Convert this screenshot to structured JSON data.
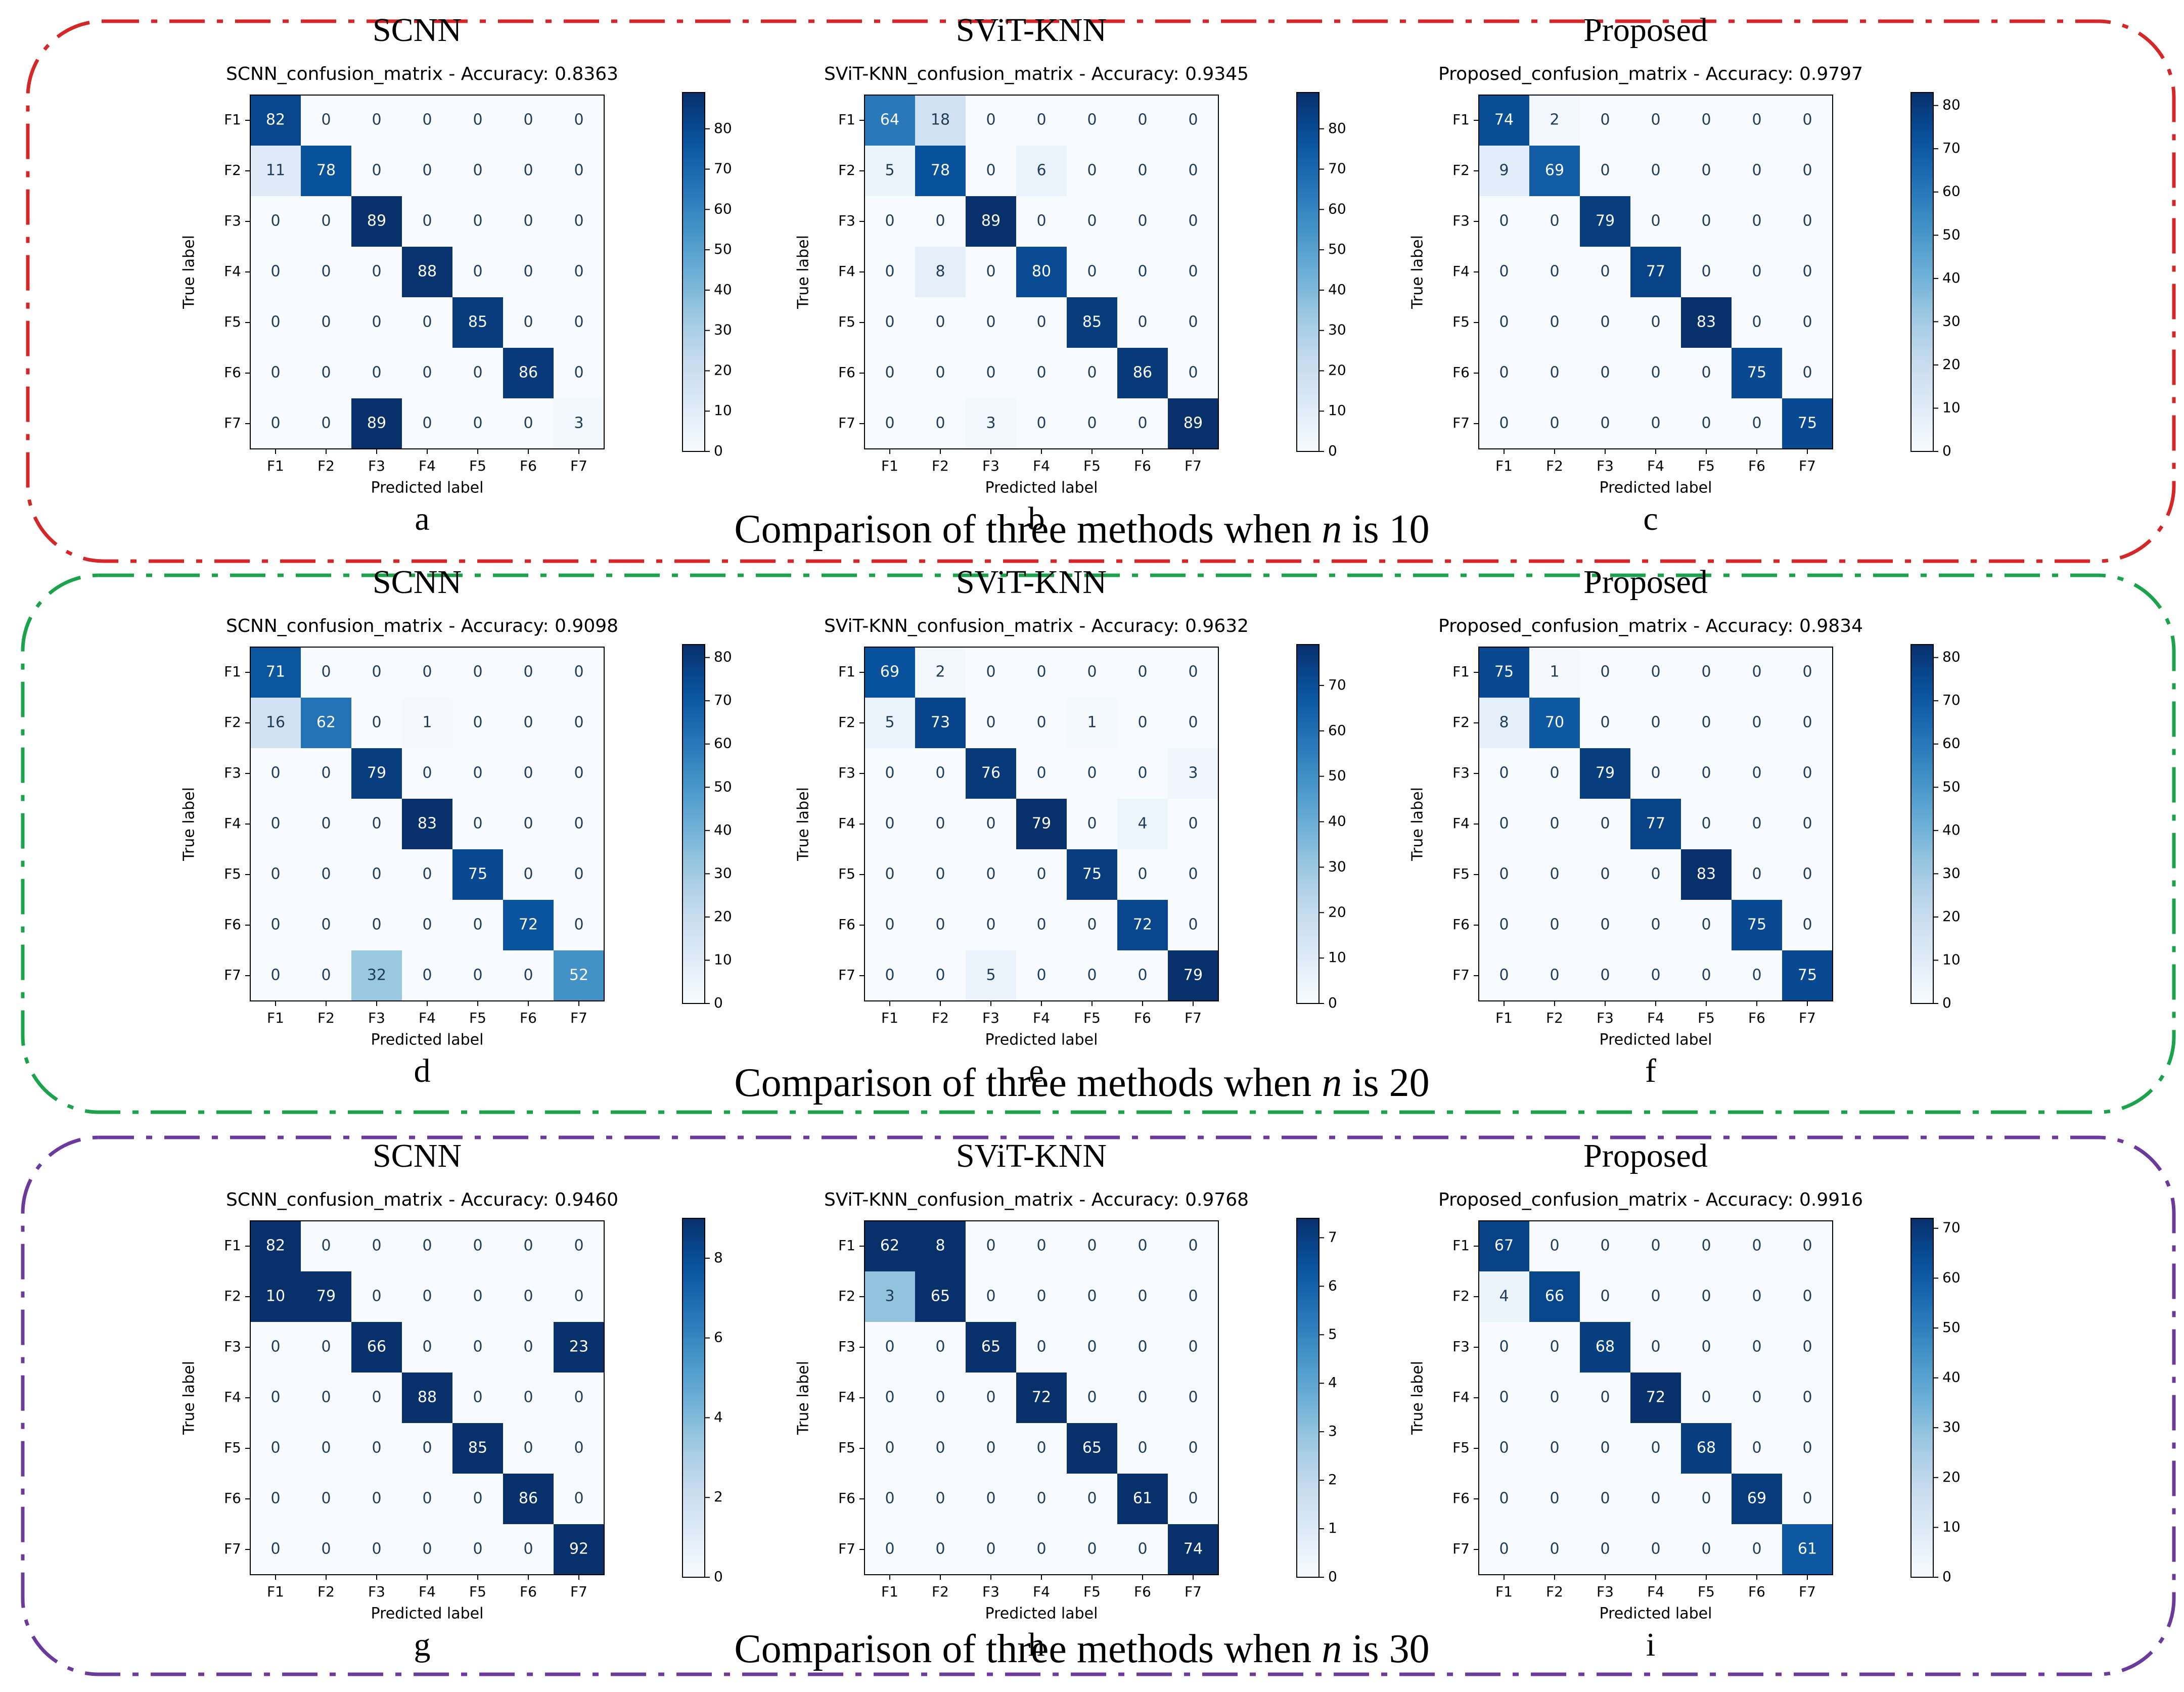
{
  "classes": [
    "F1",
    "F2",
    "F3",
    "F4",
    "F5",
    "F6",
    "F7"
  ],
  "axis_labels": {
    "x": "Predicted label",
    "y": "True label"
  },
  "groups": [
    {
      "caption_pre": "Comparison of three methods when ",
      "caption_var": "n",
      "caption_post": " is 10",
      "color": "#d62728"
    },
    {
      "caption_pre": "Comparison of three methods when ",
      "caption_var": "n",
      "caption_post": " is 20",
      "color": "#1aa34a"
    },
    {
      "caption_pre": "Comparison of three methods when ",
      "caption_var": "n",
      "caption_post": " is 30",
      "color": "#6b3a9a"
    }
  ],
  "chart_data": [
    {
      "type": "heatmap",
      "method": "SCNN",
      "panel": "a",
      "title": "SCNN_confusion_matrix - Accuracy: 0.8363",
      "xlabel": "Predicted label",
      "ylabel": "True label",
      "categories": [
        "F1",
        "F2",
        "F3",
        "F4",
        "F5",
        "F6",
        "F7"
      ],
      "vmax": 89,
      "colorbar_ticks": [
        "0",
        "10",
        "20",
        "30",
        "40",
        "50",
        "60",
        "70",
        "80"
      ],
      "colorbar_tick_values": [
        0,
        10,
        20,
        30,
        40,
        50,
        60,
        70,
        80
      ],
      "matrix": [
        [
          82,
          0,
          0,
          0,
          0,
          0,
          0
        ],
        [
          11,
          78,
          0,
          0,
          0,
          0,
          0
        ],
        [
          0,
          0,
          89,
          0,
          0,
          0,
          0
        ],
        [
          0,
          0,
          0,
          88,
          0,
          0,
          0
        ],
        [
          0,
          0,
          0,
          0,
          85,
          0,
          0
        ],
        [
          0,
          0,
          0,
          0,
          0,
          86,
          0
        ],
        [
          0,
          0,
          89,
          0,
          0,
          0,
          3
        ]
      ]
    },
    {
      "type": "heatmap",
      "method": "SViT-KNN",
      "panel": "b",
      "title": "SViT-KNN_confusion_matrix - Accuracy: 0.9345",
      "xlabel": "Predicted label",
      "ylabel": "True label",
      "categories": [
        "F1",
        "F2",
        "F3",
        "F4",
        "F5",
        "F6",
        "F7"
      ],
      "vmax": 89,
      "colorbar_ticks": [
        "0",
        "10",
        "20",
        "30",
        "40",
        "50",
        "60",
        "70",
        "80"
      ],
      "colorbar_tick_values": [
        0,
        10,
        20,
        30,
        40,
        50,
        60,
        70,
        80
      ],
      "matrix": [
        [
          64,
          18,
          0,
          0,
          0,
          0,
          0
        ],
        [
          5,
          78,
          0,
          6,
          0,
          0,
          0
        ],
        [
          0,
          0,
          89,
          0,
          0,
          0,
          0
        ],
        [
          0,
          8,
          0,
          80,
          0,
          0,
          0
        ],
        [
          0,
          0,
          0,
          0,
          85,
          0,
          0
        ],
        [
          0,
          0,
          0,
          0,
          0,
          86,
          0
        ],
        [
          0,
          0,
          3,
          0,
          0,
          0,
          89
        ]
      ]
    },
    {
      "type": "heatmap",
      "method": "Proposed",
      "panel": "c",
      "title": "Proposed_confusion_matrix - Accuracy: 0.9797",
      "xlabel": "Predicted label",
      "ylabel": "True label",
      "categories": [
        "F1",
        "F2",
        "F3",
        "F4",
        "F5",
        "F6",
        "F7"
      ],
      "vmax": 83,
      "colorbar_ticks": [
        "0",
        "10",
        "20",
        "30",
        "40",
        "50",
        "60",
        "70",
        "80"
      ],
      "colorbar_tick_values": [
        0,
        10,
        20,
        30,
        40,
        50,
        60,
        70,
        80
      ],
      "matrix": [
        [
          74,
          2,
          0,
          0,
          0,
          0,
          0
        ],
        [
          9,
          69,
          0,
          0,
          0,
          0,
          0
        ],
        [
          0,
          0,
          79,
          0,
          0,
          0,
          0
        ],
        [
          0,
          0,
          0,
          77,
          0,
          0,
          0
        ],
        [
          0,
          0,
          0,
          0,
          83,
          0,
          0
        ],
        [
          0,
          0,
          0,
          0,
          0,
          75,
          0
        ],
        [
          0,
          0,
          0,
          0,
          0,
          0,
          75
        ]
      ]
    },
    {
      "type": "heatmap",
      "method": "SCNN",
      "panel": "d",
      "title": "SCNN_confusion_matrix - Accuracy: 0.9098",
      "xlabel": "Predicted label",
      "ylabel": "True label",
      "categories": [
        "F1",
        "F2",
        "F3",
        "F4",
        "F5",
        "F6",
        "F7"
      ],
      "vmax": 83,
      "colorbar_ticks": [
        "0",
        "10",
        "20",
        "30",
        "40",
        "50",
        "60",
        "70",
        "80"
      ],
      "colorbar_tick_values": [
        0,
        10,
        20,
        30,
        40,
        50,
        60,
        70,
        80
      ],
      "matrix": [
        [
          71,
          0,
          0,
          0,
          0,
          0,
          0
        ],
        [
          16,
          62,
          0,
          1,
          0,
          0,
          0
        ],
        [
          0,
          0,
          79,
          0,
          0,
          0,
          0
        ],
        [
          0,
          0,
          0,
          83,
          0,
          0,
          0
        ],
        [
          0,
          0,
          0,
          0,
          75,
          0,
          0
        ],
        [
          0,
          0,
          0,
          0,
          0,
          72,
          0
        ],
        [
          0,
          0,
          32,
          0,
          0,
          0,
          52
        ]
      ]
    },
    {
      "type": "heatmap",
      "method": "SViT-KNN",
      "panel": "e",
      "title": "SViT-KNN_confusion_matrix - Accuracy: 0.9632",
      "xlabel": "Predicted label",
      "ylabel": "True label",
      "categories": [
        "F1",
        "F2",
        "F3",
        "F4",
        "F5",
        "F6",
        "F7"
      ],
      "vmax": 79,
      "colorbar_ticks": [
        "0",
        "10",
        "20",
        "30",
        "40",
        "50",
        "60",
        "70"
      ],
      "colorbar_tick_values": [
        0,
        10,
        20,
        30,
        40,
        50,
        60,
        70
      ],
      "matrix": [
        [
          69,
          2,
          0,
          0,
          0,
          0,
          0
        ],
        [
          5,
          73,
          0,
          0,
          1,
          0,
          0
        ],
        [
          0,
          0,
          76,
          0,
          0,
          0,
          3
        ],
        [
          0,
          0,
          0,
          79,
          0,
          4,
          0
        ],
        [
          0,
          0,
          0,
          0,
          75,
          0,
          0
        ],
        [
          0,
          0,
          0,
          0,
          0,
          72,
          0
        ],
        [
          0,
          0,
          5,
          0,
          0,
          0,
          79
        ]
      ]
    },
    {
      "type": "heatmap",
      "method": "Proposed",
      "panel": "f",
      "title": "Proposed_confusion_matrix - Accuracy: 0.9834",
      "xlabel": "Predicted label",
      "ylabel": "True label",
      "categories": [
        "F1",
        "F2",
        "F3",
        "F4",
        "F5",
        "F6",
        "F7"
      ],
      "vmax": 83,
      "colorbar_ticks": [
        "0",
        "10",
        "20",
        "30",
        "40",
        "50",
        "60",
        "70",
        "80"
      ],
      "colorbar_tick_values": [
        0,
        10,
        20,
        30,
        40,
        50,
        60,
        70,
        80
      ],
      "matrix": [
        [
          75,
          1,
          0,
          0,
          0,
          0,
          0
        ],
        [
          8,
          70,
          0,
          0,
          0,
          0,
          0
        ],
        [
          0,
          0,
          79,
          0,
          0,
          0,
          0
        ],
        [
          0,
          0,
          0,
          77,
          0,
          0,
          0
        ],
        [
          0,
          0,
          0,
          0,
          83,
          0,
          0
        ],
        [
          0,
          0,
          0,
          0,
          0,
          75,
          0
        ],
        [
          0,
          0,
          0,
          0,
          0,
          0,
          75
        ]
      ]
    },
    {
      "type": "heatmap",
      "method": "SCNN",
      "panel": "g",
      "title": "SCNN_confusion_matrix - Accuracy: 0.9460",
      "xlabel": "Predicted label",
      "ylabel": "True label",
      "categories": [
        "F1",
        "F2",
        "F3",
        "F4",
        "F5",
        "F6",
        "F7"
      ],
      "vmax": 9,
      "colorbar_ticks": [
        "0",
        "2",
        "4",
        "6",
        "8"
      ],
      "colorbar_tick_values": [
        0,
        2,
        4,
        6,
        8
      ],
      "matrix": [
        [
          82,
          0,
          0,
          0,
          0,
          0,
          0
        ],
        [
          10,
          79,
          0,
          0,
          0,
          0,
          0
        ],
        [
          0,
          0,
          66,
          0,
          0,
          0,
          23
        ],
        [
          0,
          0,
          0,
          88,
          0,
          0,
          0
        ],
        [
          0,
          0,
          0,
          0,
          85,
          0,
          0
        ],
        [
          0,
          0,
          0,
          0,
          0,
          86,
          0
        ],
        [
          0,
          0,
          0,
          0,
          0,
          0,
          92
        ]
      ]
    },
    {
      "type": "heatmap",
      "method": "SViT-KNN",
      "panel": "h",
      "title": "SViT-KNN_confusion_matrix - Accuracy: 0.9768",
      "xlabel": "Predicted label",
      "ylabel": "True label",
      "categories": [
        "F1",
        "F2",
        "F3",
        "F4",
        "F5",
        "F6",
        "F7"
      ],
      "vmax": 7.4,
      "colorbar_ticks": [
        "0",
        "1",
        "2",
        "3",
        "4",
        "5",
        "6",
        "7"
      ],
      "colorbar_tick_values": [
        0,
        1,
        2,
        3,
        4,
        5,
        6,
        7
      ],
      "matrix": [
        [
          62,
          8,
          0,
          0,
          0,
          0,
          0
        ],
        [
          3,
          65,
          0,
          0,
          0,
          0,
          0
        ],
        [
          0,
          0,
          65,
          0,
          0,
          0,
          0
        ],
        [
          0,
          0,
          0,
          72,
          0,
          0,
          0
        ],
        [
          0,
          0,
          0,
          0,
          65,
          0,
          0
        ],
        [
          0,
          0,
          0,
          0,
          0,
          61,
          0
        ],
        [
          0,
          0,
          0,
          0,
          0,
          0,
          74
        ]
      ]
    },
    {
      "type": "heatmap",
      "method": "Proposed",
      "panel": "i",
      "title": "Proposed_confusion_matrix - Accuracy: 0.9916",
      "xlabel": "Predicted label",
      "ylabel": "True label",
      "categories": [
        "F1",
        "F2",
        "F3",
        "F4",
        "F5",
        "F6",
        "F7"
      ],
      "vmax": 72,
      "colorbar_ticks": [
        "0",
        "10",
        "20",
        "30",
        "40",
        "50",
        "60",
        "70"
      ],
      "colorbar_tick_values": [
        0,
        10,
        20,
        30,
        40,
        50,
        60,
        70
      ],
      "matrix": [
        [
          67,
          0,
          0,
          0,
          0,
          0,
          0
        ],
        [
          4,
          66,
          0,
          0,
          0,
          0,
          0
        ],
        [
          0,
          0,
          68,
          0,
          0,
          0,
          0
        ],
        [
          0,
          0,
          0,
          72,
          0,
          0,
          0
        ],
        [
          0,
          0,
          0,
          0,
          68,
          0,
          0
        ],
        [
          0,
          0,
          0,
          0,
          0,
          69,
          0
        ],
        [
          0,
          0,
          0,
          0,
          0,
          0,
          61
        ]
      ]
    }
  ]
}
